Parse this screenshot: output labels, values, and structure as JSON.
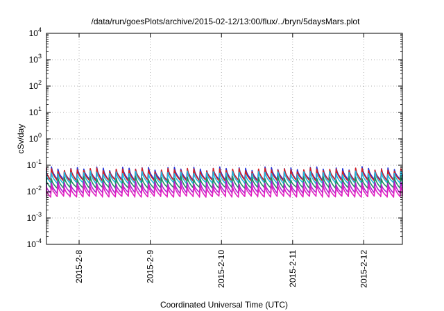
{
  "chart_data": {
    "type": "line",
    "title": "/data/run/goesPlots/archive/2015-02-12/13:00/flux/../bryn/5daysMars.plot",
    "xlabel": "Coordinated Universal Time (UTC)",
    "ylabel": "cSv/day",
    "yscale": "log",
    "ylim": [
      0.0001,
      10000
    ],
    "y_ticks": [
      {
        "value": 0.0001,
        "base": "10",
        "exp": "-4"
      },
      {
        "value": 0.001,
        "base": "10",
        "exp": "-3"
      },
      {
        "value": 0.01,
        "base": "10",
        "exp": "-2"
      },
      {
        "value": 0.1,
        "base": "10",
        "exp": "-1"
      },
      {
        "value": 1,
        "base": "10",
        "exp": "0"
      },
      {
        "value": 10,
        "base": "10",
        "exp": "1"
      },
      {
        "value": 100,
        "base": "10",
        "exp": "2"
      },
      {
        "value": 1000,
        "base": "10",
        "exp": "3"
      },
      {
        "value": 10000,
        "base": "10",
        "exp": "4"
      }
    ],
    "x_ticks": [
      "2015-2-8",
      "2015-2-9",
      "2015-2-10",
      "2015-2-11",
      "2015-2-12"
    ],
    "xlim": [
      "2015-02-07 13:00",
      "2015-02-12 13:00"
    ],
    "grid": true,
    "legend": "none",
    "pattern": {
      "description": "periodic sawtooth: sharp rise, slow decay",
      "cycles_per_day": 11
    },
    "series": [
      {
        "color": "#1f2fd6",
        "peak": 0.075,
        "trough": 0.028
      },
      {
        "color": "#d62020",
        "peak": 0.068,
        "trough": 0.026
      },
      {
        "color": "#20b8e0",
        "peak": 0.052,
        "trough": 0.021
      },
      {
        "color": "#208a60",
        "peak": 0.033,
        "trough": 0.014
      },
      {
        "color": "#b020d0",
        "peak": 0.022,
        "trough": 0.009
      },
      {
        "color": "#e020c0",
        "peak": 0.016,
        "trough": 0.0065
      }
    ]
  }
}
